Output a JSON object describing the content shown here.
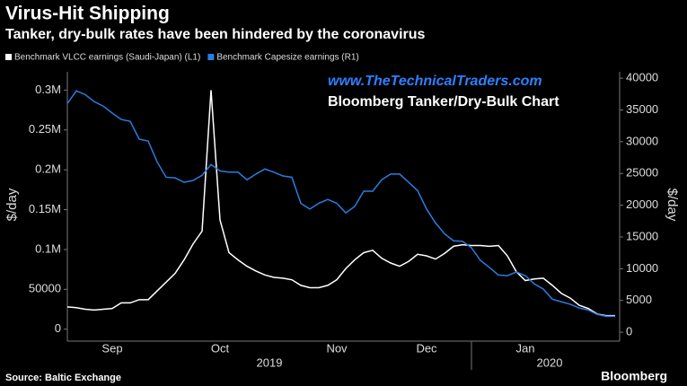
{
  "chart_data": {
    "type": "line",
    "title": "Virus-Hit Shipping",
    "subtitle": "Tanker, dry-bulk rates have been hindered by the coronavirus",
    "annotations": [
      "www.TheTechnicalTraders.com",
      "Bloomberg Tanker/Dry-Bulk Chart"
    ],
    "ylabel": "$/day",
    "y2label": "$/day",
    "source": "Source: Baltic Exchange",
    "brand": "Bloomberg",
    "years": [
      "2019",
      "2020"
    ],
    "categories": [
      null,
      null,
      null,
      null,
      null,
      "Sep",
      null,
      null,
      null,
      null,
      null,
      null,
      null,
      null,
      null,
      null,
      null,
      "Oct",
      null,
      null,
      null,
      null,
      null,
      null,
      null,
      null,
      null,
      null,
      null,
      null,
      "Nov",
      null,
      null,
      null,
      null,
      null,
      null,
      null,
      null,
      null,
      "Dec",
      null,
      null,
      null,
      null,
      null,
      null,
      null,
      null,
      null,
      null,
      "Jan",
      null,
      null,
      null,
      null,
      null,
      null,
      null,
      null,
      null,
      null
    ],
    "series": [
      {
        "name": "Benchmark VLCC earnings (Saudi-Japan) (L1)",
        "color": "#ffffff",
        "axis": "y",
        "values": [
          28000,
          27000,
          25000,
          24000,
          25000,
          26000,
          33000,
          33000,
          37000,
          37000,
          48000,
          59000,
          70000,
          87000,
          107000,
          123000,
          300000,
          137000,
          96000,
          87000,
          79000,
          73000,
          68000,
          65000,
          64000,
          62000,
          55000,
          52000,
          52000,
          55000,
          62000,
          76000,
          87000,
          96000,
          99000,
          89000,
          83000,
          79000,
          85000,
          94000,
          92000,
          88000,
          95000,
          104000,
          106000,
          105000,
          105000,
          104000,
          105000,
          92000,
          72000,
          61000,
          63000,
          64000,
          55000,
          45000,
          39000,
          30000,
          26000,
          19000,
          17000,
          17000
        ]
      },
      {
        "name": "Benchmark Capesize earnings (R1)",
        "color": "#2a7de1",
        "axis": "y2",
        "values": [
          36000,
          38000,
          37400,
          36300,
          35600,
          34500,
          33500,
          33200,
          30400,
          30100,
          26800,
          24400,
          24300,
          23600,
          23900,
          24700,
          26400,
          25400,
          25200,
          25200,
          24000,
          24900,
          25700,
          25200,
          24600,
          24400,
          20300,
          19400,
          20300,
          20900,
          20300,
          18800,
          19800,
          22200,
          22200,
          24000,
          24900,
          24900,
          23600,
          22300,
          19400,
          17200,
          15500,
          14400,
          14300,
          13300,
          11300,
          10200,
          9000,
          8900,
          9500,
          8900,
          7600,
          6800,
          5200,
          4800,
          4400,
          3800,
          3500,
          2800,
          2500,
          2500
        ]
      }
    ],
    "ylim": [
      -15000,
      323000
    ],
    "yticks": [
      0,
      50000,
      {
        "value": 100000,
        "label": "0.1M"
      },
      {
        "value": 150000,
        "label": "0.15M"
      },
      {
        "value": 200000,
        "label": "0.2M"
      },
      {
        "value": 250000,
        "label": "0.25M"
      },
      {
        "value": 300000,
        "label": "0.3M"
      }
    ],
    "y2lim": [
      -1400,
      41000
    ],
    "y2ticks": [
      0,
      5000,
      10000,
      15000,
      20000,
      25000,
      30000,
      35000,
      40000
    ],
    "grid": false
  }
}
